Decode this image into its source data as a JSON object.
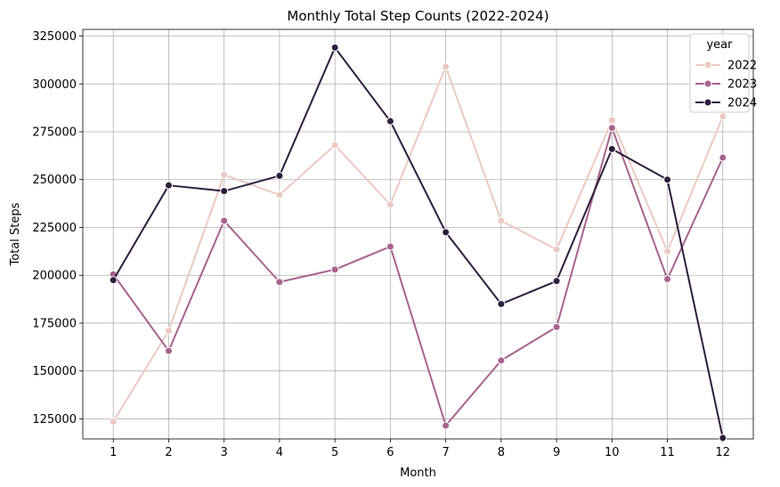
{
  "chart_data": {
    "type": "line",
    "title": "Monthly Total Step Counts (2022-2024)",
    "xlabel": "Month",
    "ylabel": "Total Steps",
    "x": [
      1,
      2,
      3,
      4,
      5,
      6,
      7,
      8,
      9,
      10,
      11,
      12
    ],
    "xlim": [
      0.45,
      12.55
    ],
    "ylim": [
      114500,
      328500
    ],
    "yticks": [
      125000,
      150000,
      175000,
      200000,
      225000,
      250000,
      275000,
      300000,
      325000
    ],
    "grid": true,
    "legend": {
      "title": "year",
      "placement": "top-right"
    },
    "series": [
      {
        "name": "2022",
        "color": "#ecc9c2",
        "values": [
          123500,
          171000,
          252500,
          242000,
          268000,
          237000,
          309000,
          228500,
          213500,
          281000,
          212500,
          283000
        ]
      },
      {
        "name": "2023",
        "color": "#a8638c",
        "values": [
          200500,
          160500,
          228500,
          196500,
          203000,
          215000,
          121500,
          155500,
          173000,
          277000,
          198000,
          261500
        ]
      },
      {
        "name": "2024",
        "color": "#2d1e3e",
        "values": [
          197500,
          247000,
          244000,
          252000,
          319000,
          280500,
          222500,
          185000,
          197000,
          266000,
          250000,
          115000
        ]
      }
    ]
  }
}
